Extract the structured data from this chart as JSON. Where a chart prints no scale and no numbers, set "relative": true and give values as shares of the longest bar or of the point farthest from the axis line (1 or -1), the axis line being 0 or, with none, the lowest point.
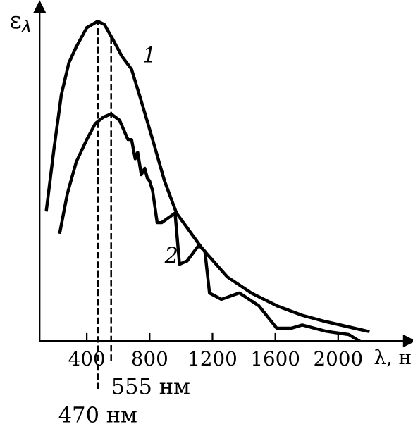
{
  "chart_data": {
    "type": "line",
    "relative": true,
    "xlabel": "λ, н",
    "ylabel": "ε$_{λ}$",
    "xlim": [
      100,
      2450
    ],
    "xticks": [
      400,
      800,
      1200,
      1600,
      2000
    ],
    "grid": false,
    "marker": "none",
    "line_style": "solid",
    "series": [
      {
        "name": "1",
        "color": "#000000",
        "x": [
          143,
          191,
          238,
          286,
          333,
          400,
          470,
          512,
          570,
          624,
          685,
          747,
          819,
          895,
          971,
          1133,
          1295,
          1447,
          1609,
          1771,
          1924,
          2190
        ],
        "values": [
          0.41,
          0.6,
          0.77,
          0.87,
          0.92,
          0.98,
          1.0,
          0.99,
          0.94,
          0.89,
          0.85,
          0.75,
          0.63,
          0.5,
          0.4,
          0.29,
          0.2,
          0.15,
          0.11,
          0.08,
          0.06,
          0.03
        ]
      },
      {
        "name": "2",
        "color": "#000000",
        "x": [
          229,
          276,
          333,
          400,
          454,
          506,
          555,
          609,
          662,
          685,
          708,
          724,
          747,
          769,
          785,
          800,
          819,
          848,
          876,
          962,
          990,
          1038,
          1114,
          1152,
          1181,
          1257,
          1371,
          1495,
          1609,
          1704,
          1771,
          1847,
          1924,
          2067,
          2133
        ],
        "values": [
          0.34,
          0.46,
          0.56,
          0.63,
          0.68,
          0.7,
          0.71,
          0.69,
          0.63,
          0.63,
          0.57,
          0.59,
          0.52,
          0.54,
          0.51,
          0.5,
          0.47,
          0.37,
          0.37,
          0.4,
          0.24,
          0.25,
          0.3,
          0.28,
          0.15,
          0.13,
          0.15,
          0.11,
          0.04,
          0.04,
          0.05,
          0.04,
          0.03,
          0.02,
          0.0
        ]
      }
    ],
    "ref_lines": [
      {
        "axis": "x",
        "value": 470,
        "label": "470 нм",
        "line_style": "dashed"
      },
      {
        "axis": "x",
        "value": 555,
        "label": "555 нм",
        "line_style": "dashed"
      }
    ]
  }
}
